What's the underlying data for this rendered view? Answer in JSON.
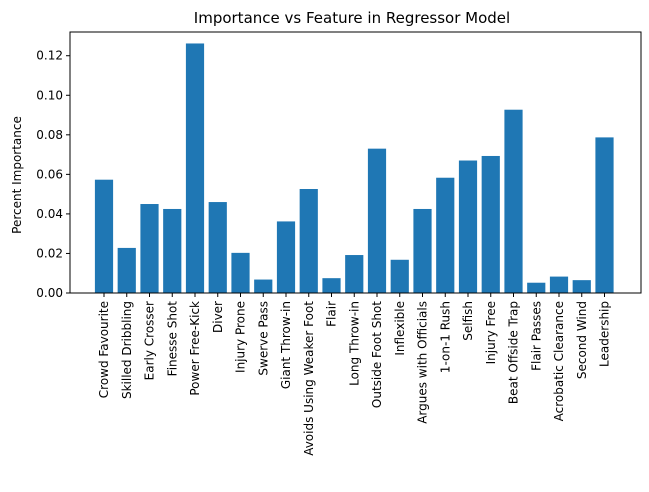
{
  "chart_data": {
    "type": "bar",
    "title": "Importance vs Feature in Regressor Model",
    "xlabel": "",
    "ylabel": "Percent Importance",
    "ylim": [
      0,
      0.132
    ],
    "yticks": [
      "0.00",
      "0.02",
      "0.04",
      "0.06",
      "0.08",
      "0.10",
      "0.12"
    ],
    "ytick_values": [
      0,
      0.02,
      0.04,
      0.06,
      0.08,
      0.1,
      0.12
    ],
    "grid": false,
    "bar_color": "#1f77b4",
    "categories": [
      "Crowd Favourite",
      "Skilled Dribbling",
      "Early Crosser",
      "Finesse Shot",
      "Power Free-Kick",
      "Diver",
      "Injury Prone",
      "Swerve Pass",
      "Giant Throw-in",
      "Avoids Using Weaker Foot",
      "Flair",
      "Long Throw-in",
      "Outside Foot Shot",
      "Inflexible",
      "Argues with Officials",
      "1-on-1 Rush",
      "Selfish",
      "Injury Free",
      "Beat Offside Trap",
      "Flair Passes",
      "Acrobatic Clearance",
      "Second Wind",
      "Leadership"
    ],
    "values": [
      0.0573,
      0.0228,
      0.045,
      0.0425,
      0.1262,
      0.046,
      0.0203,
      0.0068,
      0.0362,
      0.0526,
      0.0075,
      0.0192,
      0.073,
      0.0168,
      0.0425,
      0.0583,
      0.067,
      0.0693,
      0.0927,
      0.0052,
      0.0083,
      0.0065,
      0.0787
    ]
  }
}
